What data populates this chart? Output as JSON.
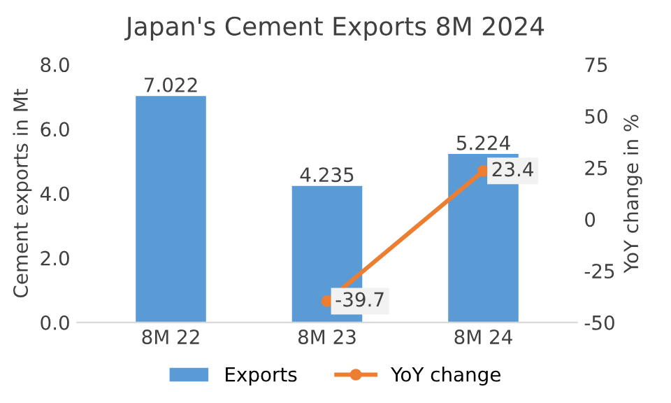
{
  "chart_data": {
    "type": "bar",
    "title": "Japan's Cement Exports 8M 2024",
    "categories": [
      "8M 22",
      "8M 23",
      "8M 24"
    ],
    "series": [
      {
        "name": "Exports",
        "color": "#5b9bd5",
        "values": [
          7.022,
          4.235,
          5.224
        ]
      },
      {
        "name": "YoY change",
        "type": "line",
        "axis": "y2",
        "color": "#ed7d31",
        "values": [
          null,
          -39.7,
          23.4
        ]
      }
    ],
    "ylabel": "Cement exports in Mt",
    "y2label": "YoY change in %",
    "ylim": [
      0,
      8
    ],
    "yticks": [
      {
        "value": 0,
        "label": "0.0"
      },
      {
        "value": 2,
        "label": "2.0"
      },
      {
        "value": 4,
        "label": "4.0"
      },
      {
        "value": 6,
        "label": "6.0"
      },
      {
        "value": 8,
        "label": "8.0"
      }
    ],
    "y2lim": [
      -50,
      75
    ],
    "y2ticks": [
      -50,
      -25,
      0,
      25,
      50,
      75
    ],
    "data_labels": true,
    "legend": "bottom",
    "grid": false,
    "marker": "circle",
    "line_style": "solid"
  }
}
